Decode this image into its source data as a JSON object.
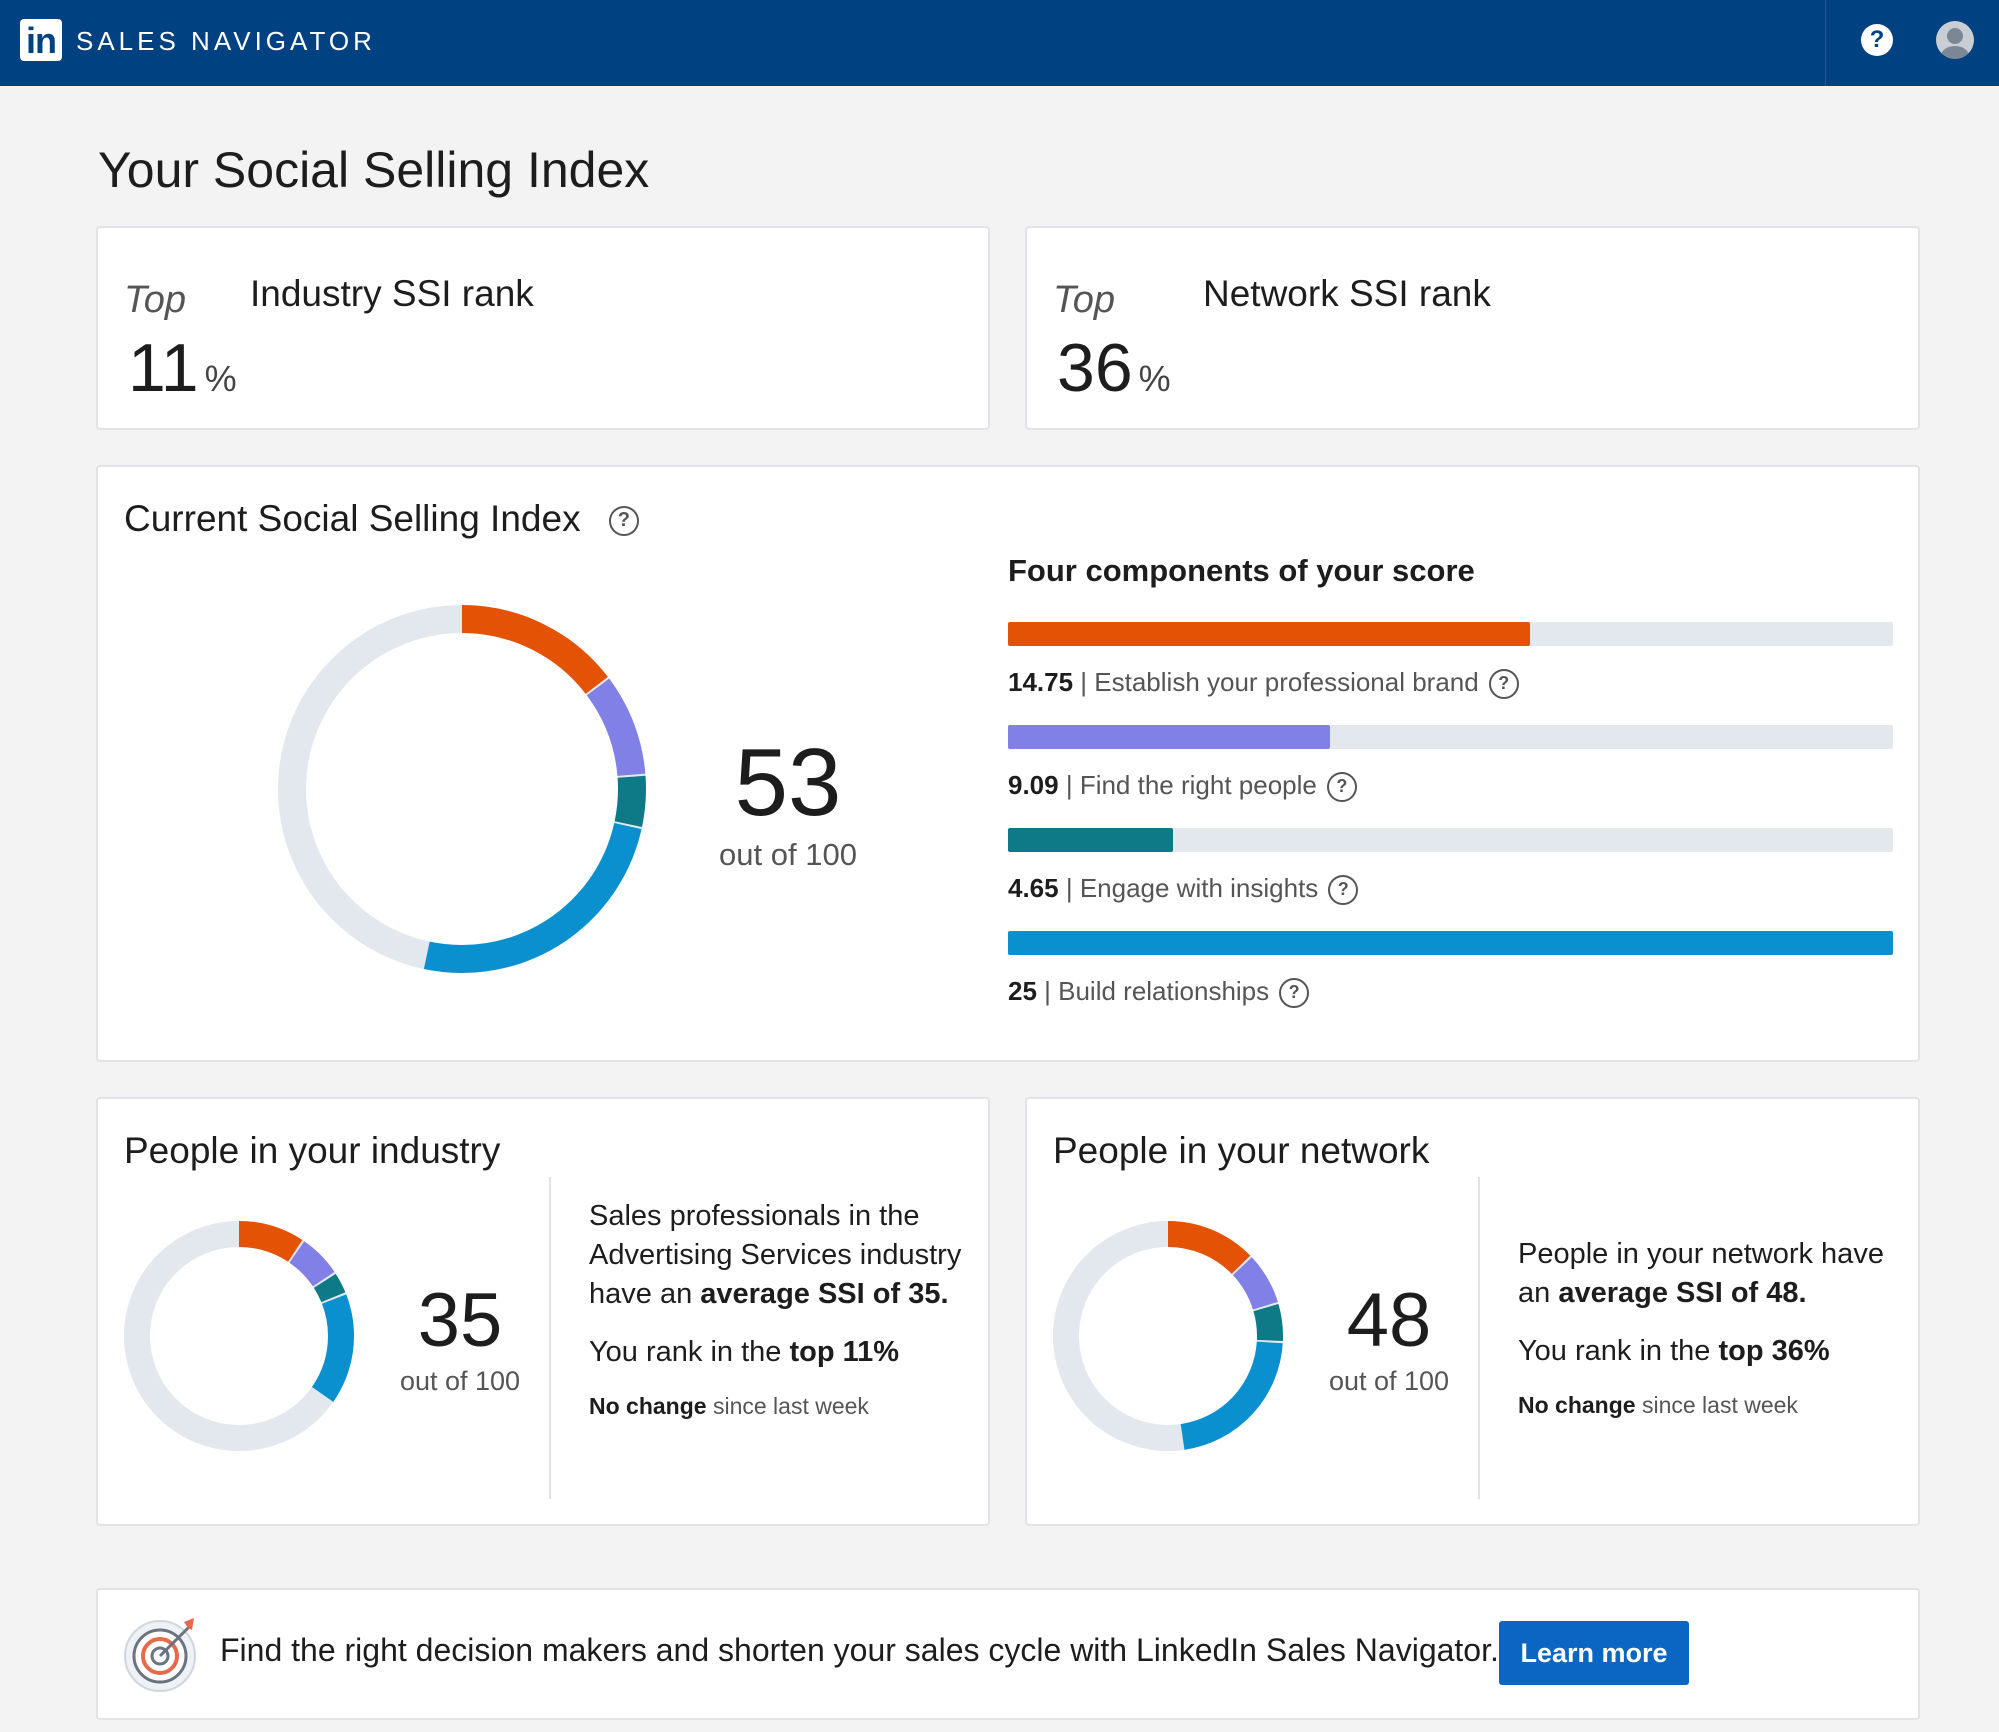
{
  "header": {
    "logo_text": "in",
    "brand": "SALES NAVIGATOR",
    "help_symbol": "?"
  },
  "page_title": "Your Social Selling Index",
  "industry_rank": {
    "prefix": "Top",
    "value": "11",
    "unit": "%",
    "label": "Industry SSI rank"
  },
  "network_rank": {
    "prefix": "Top",
    "value": "36",
    "unit": "%",
    "label": "Network SSI rank"
  },
  "current_ssi": {
    "title": "Current Social Selling Index",
    "help_symbol": "?",
    "score": "53",
    "out_of": "out of 100",
    "components_title": "Four components of your score",
    "components": [
      {
        "value": "14.75",
        "label": "Establish your professional brand"
      },
      {
        "value": "9.09",
        "label": "Find the right people"
      },
      {
        "value": "4.65",
        "label": "Engage with insights"
      },
      {
        "value": "25",
        "label": "Build relationships"
      }
    ]
  },
  "industry": {
    "title": "People in your industry",
    "score": "35",
    "out_of": "out of 100",
    "desc_pre": "Sales professionals in the Advertising Services industry have an ",
    "desc_bold": "average SSI of 35.",
    "rank_pre": "You rank in the ",
    "rank_bold": "top 11%",
    "change_bold": "No change",
    "change_rest": " since last week"
  },
  "network": {
    "title": "People in your network",
    "score": "48",
    "out_of": "out of 100",
    "desc_pre": "People in your network have an ",
    "desc_bold": "average SSI of 48.",
    "rank_pre": "You rank in the ",
    "rank_bold": "top 36%",
    "change_bold": "No change",
    "change_rest": " since last week"
  },
  "cta": {
    "text": "Find the right decision makers and shorten your sales cycle with LinkedIn Sales Navigator.",
    "button": "Learn more",
    "icon": "target-icon"
  },
  "colors": {
    "brand": "#e35205",
    "people": "#8080e6",
    "insights": "#0e7a87",
    "relationships": "#0b90cf",
    "track": "#e2e8ee"
  },
  "chart_data": [
    {
      "type": "pie",
      "name": "current",
      "categories": [
        "Establish your professional brand",
        "Find the right people",
        "Engage with insights",
        "Build relationships"
      ],
      "values": [
        14.75,
        9.09,
        4.65,
        25
      ],
      "max": 100,
      "component_max": 25
    },
    {
      "type": "pie",
      "name": "industry",
      "values": [
        9.6,
        6.3,
        3.2,
        15.9
      ],
      "max": 100
    },
    {
      "type": "pie",
      "name": "network",
      "values": [
        13,
        7.5,
        5.5,
        22
      ],
      "max": 100
    }
  ]
}
